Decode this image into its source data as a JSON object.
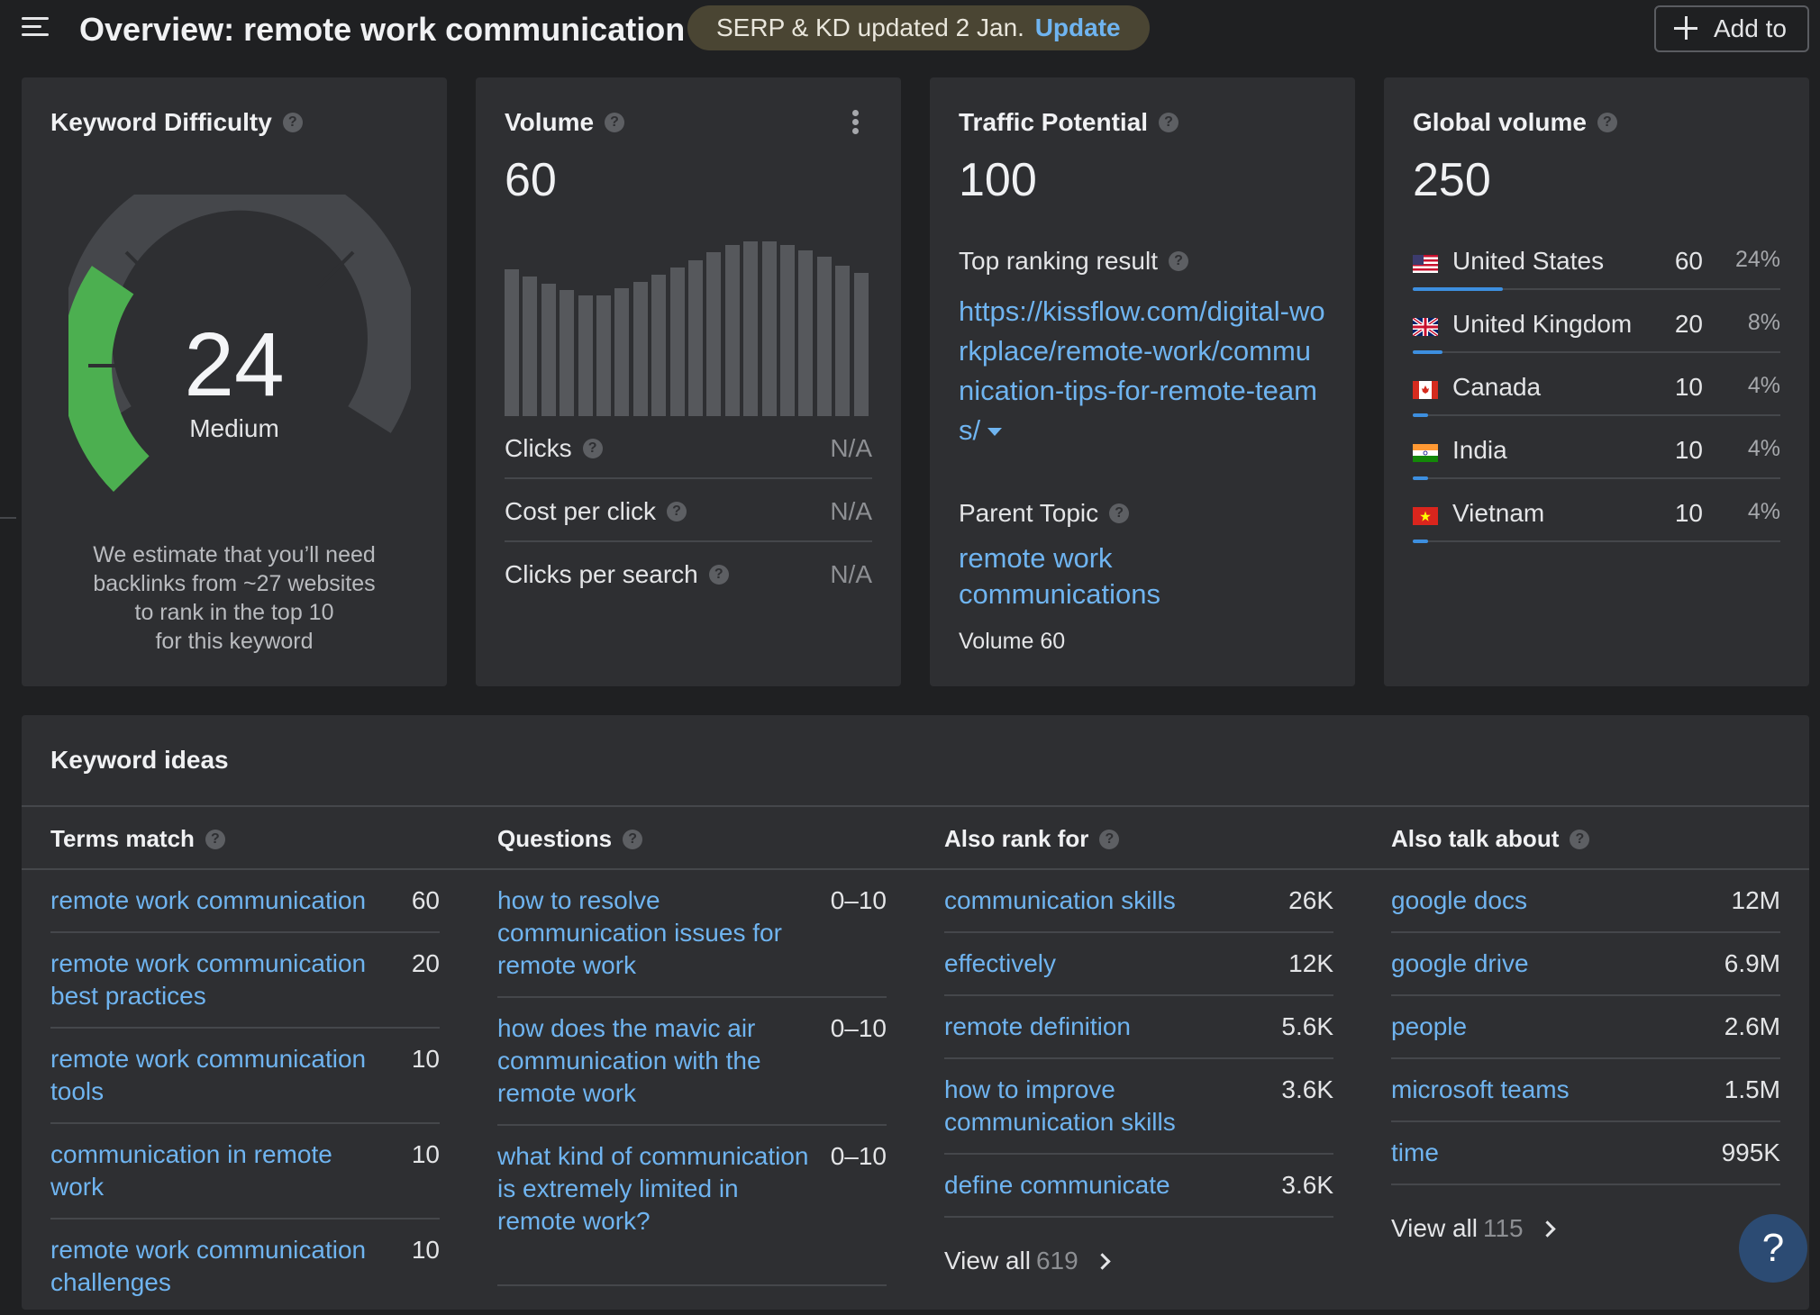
{
  "header": {
    "title": "Overview: remote work communication",
    "serp_notice": "SERP & KD updated 2 Jan.",
    "serp_update_link": "Update",
    "add_button": "Add to"
  },
  "kd": {
    "title": "Keyword Difficulty",
    "value": "24",
    "label": "Medium",
    "gauge_fraction": 0.24,
    "desc_lines": [
      "We estimate that you’ll need",
      "backlinks from ~27 websites",
      "to rank in the top 10",
      "for this keyword"
    ]
  },
  "volume": {
    "title": "Volume",
    "value": "60",
    "trend": [
      0.84,
      0.8,
      0.76,
      0.72,
      0.69,
      0.69,
      0.73,
      0.77,
      0.81,
      0.85,
      0.89,
      0.94,
      0.98,
      1.0,
      1.0,
      0.98,
      0.95,
      0.91,
      0.86,
      0.82
    ],
    "rows": [
      {
        "label": "Clicks",
        "value": "N/A"
      },
      {
        "label": "Cost per click",
        "value": "N/A"
      },
      {
        "label": "Clicks per search",
        "value": "N/A"
      }
    ]
  },
  "traffic": {
    "title": "Traffic Potential",
    "value": "100",
    "top_result_label": "Top ranking result",
    "top_result_url": "https://kissflow.com/digital-workplace/remote-work/communication-tips-for-remote-teams/",
    "parent_topic_label": "Parent Topic",
    "parent_topic": "remote work communications",
    "parent_volume": "Volume 60"
  },
  "global": {
    "title": "Global volume",
    "value": "250",
    "countries": [
      {
        "name": "United States",
        "count": "60",
        "pct": "24%",
        "share": 0.24,
        "flag": "us-flag"
      },
      {
        "name": "United Kingdom",
        "count": "20",
        "pct": "8%",
        "share": 0.08,
        "flag": "uk-flag"
      },
      {
        "name": "Canada",
        "count": "10",
        "pct": "4%",
        "share": 0.04,
        "flag": "canada-flag"
      },
      {
        "name": "India",
        "count": "10",
        "pct": "4%",
        "share": 0.04,
        "flag": "india-flag"
      },
      {
        "name": "Vietnam",
        "count": "10",
        "pct": "4%",
        "share": 0.04,
        "flag": "vietnam-flag"
      }
    ]
  },
  "ideas": {
    "title": "Keyword ideas",
    "terms": {
      "header": "Terms match",
      "items": [
        {
          "kw": "remote work communication",
          "num": "60"
        },
        {
          "kw": "remote work communication best practices",
          "num": "20"
        },
        {
          "kw": "remote work communication tools",
          "num": "10"
        },
        {
          "kw": "communication in remote work",
          "num": "10"
        },
        {
          "kw": "remote work communication challenges",
          "num": "10"
        }
      ]
    },
    "questions": {
      "header": "Questions",
      "items": [
        {
          "kw": "how to resolve communication issues for remote work",
          "num": "0–10"
        },
        {
          "kw": "how does the mavic air communication with the remote work",
          "num": "0–10"
        },
        {
          "kw": "what kind of communication is extremely limited in remote work?",
          "num": "0–10"
        }
      ]
    },
    "also_rank": {
      "header": "Also rank for",
      "items": [
        {
          "kw": "communication skills",
          "num": "26K"
        },
        {
          "kw": "effectively",
          "num": "12K"
        },
        {
          "kw": "remote definition",
          "num": "5.6K"
        },
        {
          "kw": "how to improve communication skills",
          "num": "3.6K"
        },
        {
          "kw": "define communicate",
          "num": "3.6K"
        }
      ],
      "view_all": "View all",
      "view_all_count": "619"
    },
    "also_talk": {
      "header": "Also talk about",
      "items": [
        {
          "kw": "google docs",
          "num": "12M"
        },
        {
          "kw": "google drive",
          "num": "6.9M"
        },
        {
          "kw": "people",
          "num": "2.6M"
        },
        {
          "kw": "microsoft teams",
          "num": "1.5M"
        },
        {
          "kw": "time",
          "num": "995K"
        }
      ],
      "view_all": "View all",
      "view_all_count": "115"
    }
  },
  "help_fab": "?",
  "colors": {
    "accent": "#6fb4f0",
    "kd_green": "#4caf50",
    "bar_blue": "#3d8fe0",
    "bg": "#1f2022",
    "card": "#2e2f32"
  }
}
